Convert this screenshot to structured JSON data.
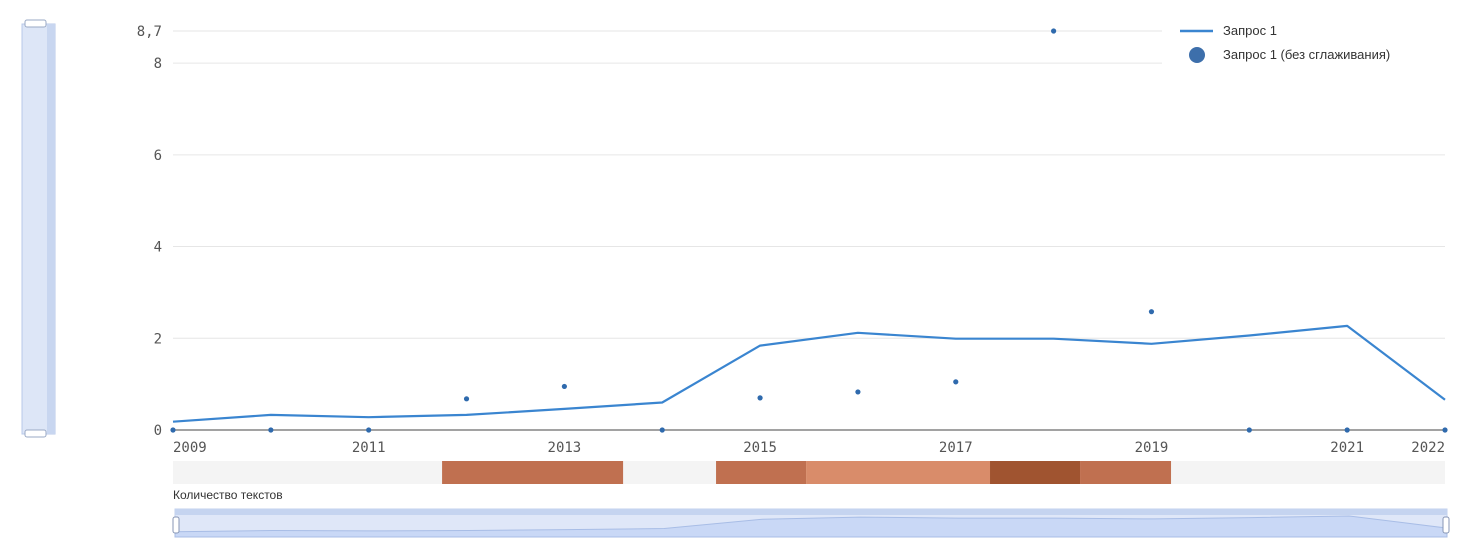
{
  "chart_data": {
    "type": "line",
    "x_ticks": [
      "2009",
      "2011",
      "2013",
      "2015",
      "2017",
      "2019",
      "2021",
      "2022"
    ],
    "y_ticks": [
      "0",
      "2",
      "4",
      "6",
      "8",
      "8,7"
    ],
    "ylim": [
      0,
      8.7
    ],
    "xlim": [
      2009,
      2022
    ],
    "grid": true,
    "legend_position": "top-right",
    "series": [
      {
        "name": "Запрос 1",
        "kind": "line",
        "color": "#3a85d0",
        "x": [
          2009,
          2010,
          2011,
          2012,
          2013,
          2014,
          2015,
          2016,
          2017,
          2018,
          2019,
          2020,
          2021,
          2022
        ],
        "values": [
          0.18,
          0.33,
          0.28,
          0.33,
          0.46,
          0.6,
          1.84,
          2.12,
          1.99,
          1.99,
          1.88,
          2.06,
          2.27,
          0.66
        ]
      },
      {
        "name": "Запрос 1 (без сглаживания)",
        "kind": "scatter",
        "color": "#2f6aad",
        "x": [
          2009,
          2010,
          2011,
          2012,
          2013,
          2014,
          2015,
          2016,
          2017,
          2018,
          2019,
          2020,
          2021,
          2022
        ],
        "values": [
          0,
          0,
          0,
          0.68,
          0.95,
          0,
          0.7,
          0.83,
          1.05,
          8.7,
          2.58,
          0,
          0,
          0
        ]
      }
    ],
    "heatmap": {
      "label": "Количество текстов",
      "cells": [
        {
          "from": 2011.75,
          "to": 2013.6,
          "color": "#c07050"
        },
        {
          "from": 2014.55,
          "to": 2015.47,
          "color": "#c07050"
        },
        {
          "from": 2015.47,
          "to": 2017.35,
          "color": "#d98c6a"
        },
        {
          "from": 2017.35,
          "to": 2018.27,
          "color": "#a05430"
        },
        {
          "from": 2018.27,
          "to": 2019.2,
          "color": "#c07050"
        }
      ]
    }
  }
}
